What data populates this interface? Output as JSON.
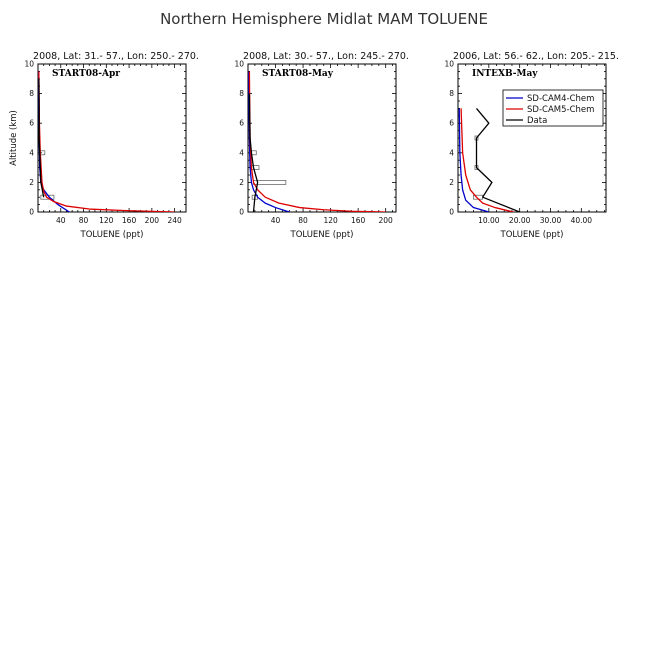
{
  "figure": {
    "title": "Northern Hemisphere Midlat MAM TOLUENE"
  },
  "colors": {
    "cam4": "#0000cc",
    "cam5": "#dd0000",
    "data": "#000000",
    "box": "#555555"
  },
  "legend": {
    "entries": [
      {
        "name": "SD-CAM4-Chem",
        "color": "#0000cc"
      },
      {
        "name": "SD-CAM5-Chem",
        "color": "#dd0000"
      },
      {
        "name": "Data",
        "color": "#000000"
      }
    ],
    "placement": "top-right of third panel"
  },
  "chart_data": [
    {
      "type": "line",
      "subtitle": "2008, Lat:  31.- 57., Lon: 250.- 270.",
      "campaign": "START08-Apr",
      "xlabel": "TOLUENE (ppt)",
      "ylabel": "Altitude (km)",
      "xlim": [
        0,
        260
      ],
      "ylim": [
        0,
        10
      ],
      "xticks": [
        40,
        80,
        120,
        160,
        200,
        240
      ],
      "xtick_labels": [
        "40",
        "80",
        "120",
        "160",
        "200",
        "240"
      ],
      "yticks": [
        0,
        2,
        4,
        6,
        8,
        10
      ],
      "ytick_labels": [
        "0",
        "2",
        "4",
        "6",
        "8",
        "10"
      ],
      "series": [
        {
          "name": "SD-CAM4-Chem",
          "color": "#0000cc",
          "x": [
            55,
            35,
            20,
            10,
            5,
            3,
            2,
            1.5,
            1
          ],
          "y": [
            0,
            0.5,
            1,
            1.5,
            2,
            3,
            5,
            7,
            9.5
          ]
        },
        {
          "name": "SD-CAM5-Chem",
          "color": "#dd0000",
          "x": [
            240,
            150,
            90,
            50,
            28,
            15,
            10,
            7,
            4,
            2.5,
            1.5
          ],
          "y": [
            0,
            0.1,
            0.2,
            0.4,
            0.7,
            1.0,
            1.4,
            2.0,
            4.0,
            6.0,
            9.5
          ]
        },
        {
          "name": "Data",
          "color": "#000000",
          "x": [
            10,
            5,
            3,
            2,
            2,
            1.5
          ],
          "y": [
            1,
            2,
            4,
            5,
            7,
            9
          ]
        }
      ],
      "boxes": [
        {
          "y": 1,
          "x_low": 5,
          "x_high": 28
        },
        {
          "y": 4,
          "x_low": 2,
          "x_high": 12
        }
      ]
    },
    {
      "type": "line",
      "subtitle": "2008, Lat:  30.- 57., Lon: 245.- 270.",
      "campaign": "START08-May",
      "xlabel": "TOLUENE (ppt)",
      "ylabel": "",
      "xlim": [
        0,
        215
      ],
      "ylim": [
        0,
        10
      ],
      "xticks": [
        40,
        80,
        120,
        160,
        200
      ],
      "xtick_labels": [
        "40",
        "80",
        "120",
        "160",
        "200"
      ],
      "yticks": [
        0,
        2,
        4,
        6,
        8,
        10
      ],
      "ytick_labels": [
        "0",
        "2",
        "4",
        "6",
        "8",
        "10"
      ],
      "series": [
        {
          "name": "SD-CAM4-Chem",
          "color": "#0000cc",
          "x": [
            60,
            40,
            25,
            14,
            8,
            5,
            3,
            2,
            1.5,
            1
          ],
          "y": [
            0,
            0.3,
            0.6,
            1.0,
            1.5,
            2.0,
            3.0,
            5.0,
            7.0,
            9.5
          ]
        },
        {
          "name": "SD-CAM5-Chem",
          "color": "#dd0000",
          "x": [
            200,
            150,
            110,
            75,
            45,
            25,
            14,
            8,
            5,
            3,
            2
          ],
          "y": [
            0,
            0.05,
            0.15,
            0.3,
            0.6,
            1.0,
            1.5,
            2.0,
            3.0,
            5.0,
            9.5
          ]
        },
        {
          "name": "Data",
          "color": "#000000",
          "x": [
            8,
            10,
            14,
            8,
            5,
            3,
            2
          ],
          "y": [
            0,
            1,
            2,
            3,
            4,
            5,
            8
          ]
        }
      ],
      "boxes": [
        {
          "y": 1,
          "x_low": 6,
          "x_high": 14
        },
        {
          "y": 2,
          "x_low": 8,
          "x_high": 55
        },
        {
          "y": 3,
          "x_low": 4,
          "x_high": 16
        },
        {
          "y": 4,
          "x_low": 2,
          "x_high": 12
        }
      ]
    },
    {
      "type": "line",
      "subtitle": "2006, Lat: 56.- 62., Lon: 205.- 215.",
      "campaign": "INTEXB-May",
      "xlabel": "TOLUENE (ppt)",
      "ylabel": "",
      "xlim": [
        0,
        48
      ],
      "ylim": [
        0,
        10
      ],
      "xticks": [
        10,
        20,
        30,
        40
      ],
      "xtick_labels": [
        "10.00",
        "20.00",
        "30.00",
        "40.00"
      ],
      "yticks": [
        0,
        2,
        4,
        6,
        8,
        10
      ],
      "ytick_labels": [
        "0",
        "2",
        "4",
        "6",
        "8",
        "10"
      ],
      "series": [
        {
          "name": "SD-CAM4-Chem",
          "color": "#0000cc",
          "x": [
            10,
            5,
            2.5,
            1.5,
            1,
            0.6,
            0.4
          ],
          "y": [
            0,
            0.3,
            0.8,
            1.5,
            2.5,
            4.0,
            7.0
          ]
        },
        {
          "name": "SD-CAM5-Chem",
          "color": "#dd0000",
          "x": [
            18,
            12,
            8,
            6,
            4,
            2.5,
            1.5,
            1
          ],
          "y": [
            0,
            0.3,
            0.6,
            1.0,
            1.5,
            2.5,
            4.0,
            7.0
          ]
        },
        {
          "name": "Data",
          "color": "#000000",
          "x": [
            20,
            8,
            11,
            6,
            6,
            6,
            10,
            6
          ],
          "y": [
            0,
            1,
            2,
            3,
            4,
            5,
            6,
            7
          ]
        }
      ],
      "boxes": [
        {
          "y": 1,
          "x_low": 5,
          "x_high": 8
        },
        {
          "y": 3,
          "x_low": 5.5,
          "x_high": 6.5
        },
        {
          "y": 5,
          "x_low": 5.5,
          "x_high": 6.5
        }
      ]
    }
  ]
}
